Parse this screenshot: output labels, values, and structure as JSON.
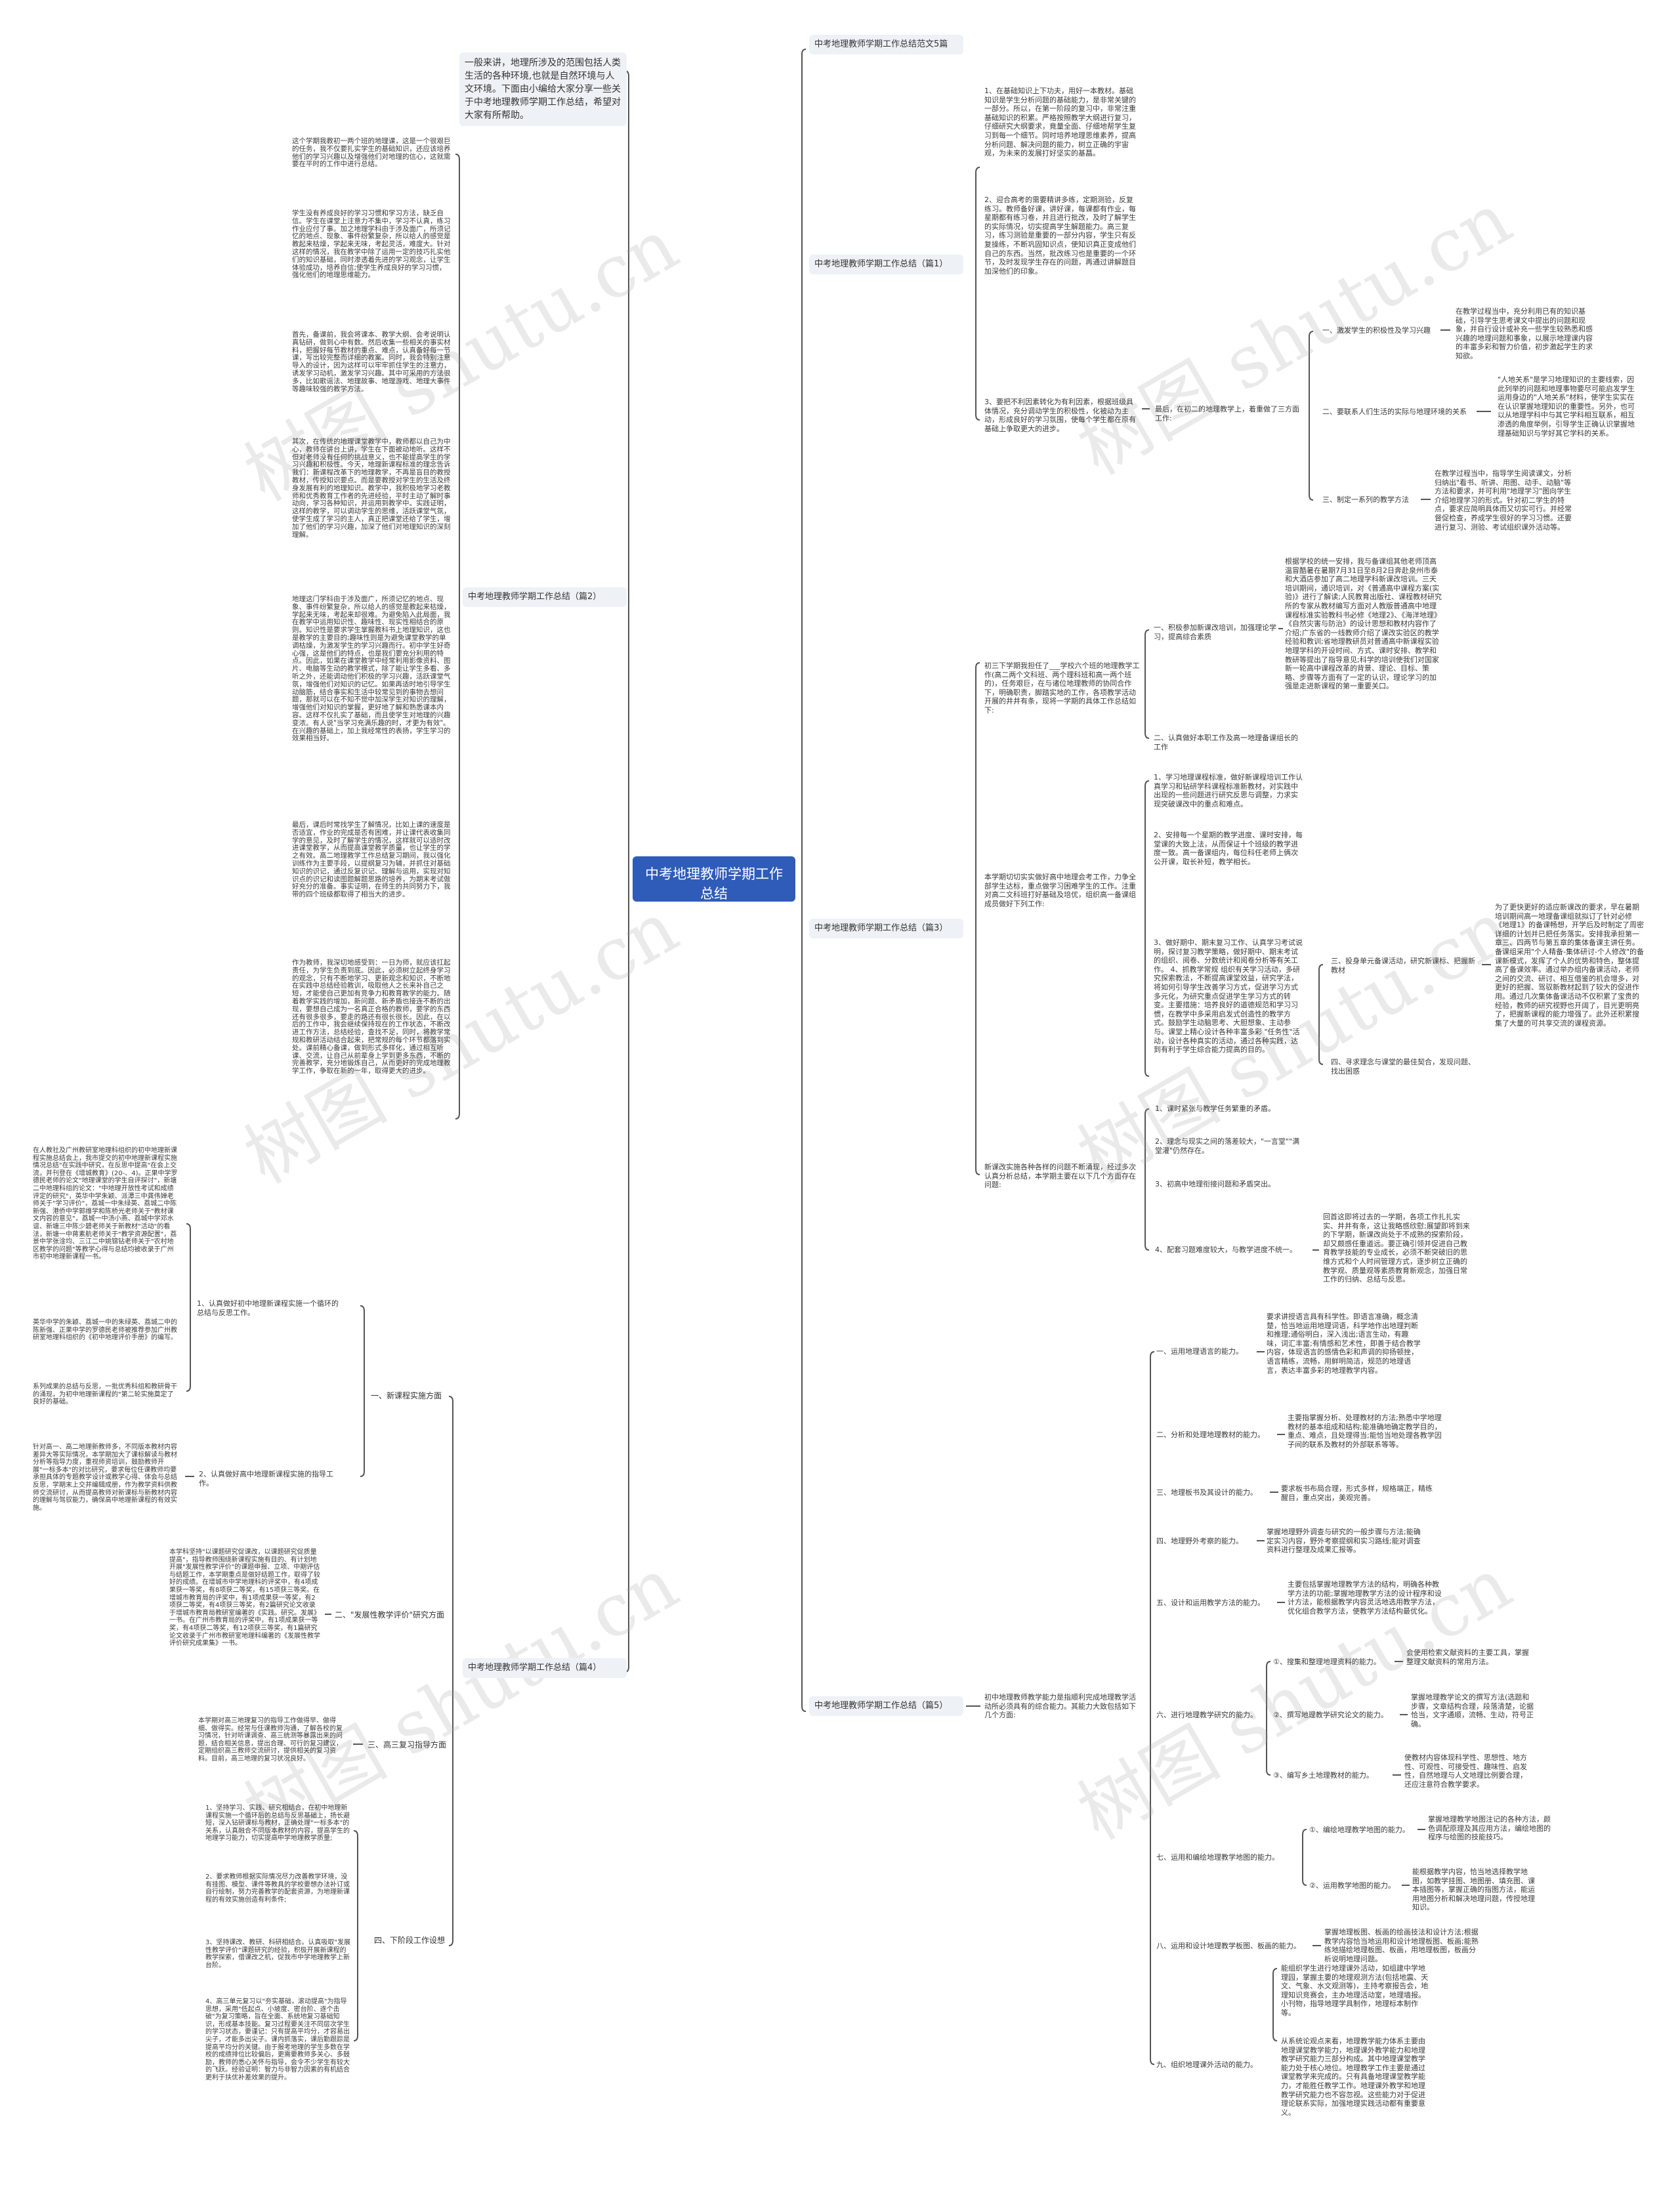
{
  "root": {
    "title": "中考地理教师学期工作总结"
  },
  "watermark": "树图 shutu.cn",
  "intro": "一般来讲，地理所涉及的范围包括人类生活的各种环境,也就是自然环境与人文环境。下面由小编给大家分享一些关于中考地理教师学期工作总结，希望对大家有所帮助。",
  "right_title": "中考地理教师学期工作总结范文5篇",
  "p1": {
    "label": "中考地理教师学期工作总结（篇1）",
    "items": [
      "1、在基础知识上下功夫，用好一本教材。基础知识是学生分析问题的基础能力，是非常关键的一部分。所以，在第一阶段的复习中，非常注重基础知识的积累。严格按照教学大纲进行复习，仔细研究大纲要求，竟量全面、仔细地帮学生复习到每一个细节。同时培养地理思维素养，提高分析问题、解决问题的能力，树立正确的宇宙观，为未来的发展打好坚实的基蕌。",
      "2、迎合高考的需要精讲多练，定期测验，反复练习。教师备好课，讲好课，每课都有作业，每星期都有练习卷，并且进行批改，及时了解学生的实际情况，切实提高学生解题能力。高三复习，练习测验是重要的一部分内容，学生只有反复操练，不断巩固知识点，使知识真正变成他们自己的东西。当然，批改练习也是重要的一个环节，及时发现学生存在的问题，再通过讲解题目加深他们的印象。",
      "3、要把不利因素转化为有利因素，根据班级具体情况，充分调动学生的积极性，化被动为主动，形成良好的学习氛围，使每个学生都在原有基础上争取更大的进步。"
    ],
    "last": "最后，在初二的地理教学上，着重做了三方面工作:",
    "aspects": [
      {
        "title": "一、激发学生的积极性及学习兴趣",
        "text": "在教学过程当中，充分利用已有的知识基础，引导学生思考课文中提出的问题和现象，并自行设计或补充一些学生较熟悉和感兴趣的地理问题和事象，以展示地理课内容的丰富多彩和智力价值，初步激起学生的求知欲。"
      },
      {
        "title": "二、要联系人们生活的实际与地理环境的关系",
        "text": "\"人地关系\"是学习地理知识的主要线索，因此列举的问题和地理事物要尽可能启发学生运用身边的\"人地关系\"材料，使学生实实在在认识掌握地理知识的重要性。另外，也可以从地理学科中与其它学科相互联系，相互渗透的角度举例，引导学生正确认识掌握地理基础知识与学好其它学科的关系。"
      },
      {
        "title": "三、制定一系列的教学方法",
        "text": "在教学过程当中，指导学生阅读课文，分析归纳出\"看书、听讲、用图、动手、动脑\"等方法和要求，并可利用\"地理学习\"图向学生介绍地理学习的形式。针对初二学生的特点，要求应简明具体而又切实可行。并经常督促检查，养成学生很好的学习习惯。还要进行复习、测验、考试组织课外活动等。"
      }
    ]
  },
  "p2": {
    "label": "中考地理教师学期工作总结（篇2）",
    "items": [
      "这个学期我教初一两个班的地理课，这是一个很艰巨的任务，我不仅要扎实学生的基础知识，还应该培养他们的学习兴趣以及增强他们对地理的信心，这就需要在平时的工作中进行总结。",
      "学生没有养成良好的学习习惯和学习方法，缺乏自信。学生在课堂上注意力不集中，学习不认真，练习作业应付了事。加之地理学科由于涉及面广，所须记忆的地点、现象、事件纷繁复杂，所以给人的感觉是教起来枯燥，学起来无味，考起灵活，难度大。针对这样的情况，我在教学中除了运用一定的技巧扎实他们的知识基础，同时渗透着先进的学习观念，让学生体验成功，培养自信;使学生养成良好的学习习惯，强化他们的地理思维能力。",
      "首先，备课前，我会将课本、教学大纲、会考说明认真钻研，做到心中有数。然后收集一些相关的事实材料，把握好每节教材的重点、难点，认真备好每一节课，写出较完整而详细的教案。同时，我会特别注意导入的设计，因为这样可以牢牢抓住学生的注意力，诱发学习动机，激发学习兴趣。其中可采用的方法很多，比如歌谣法、地理故事、地理游戏、地理大事件等趣味较强的教学方法。",
      "其次，在传统的地理课堂教学中，教师都以自己为中心，教师在讲台上讲，学生在下面被动地听。这样不但对老师没有任何的挑战意义，也不能提高学生的学习兴趣和积极性。今天，地理新课程标准的理念告诉我们：新课程改革下的地理教学，不再是盲目的教授教材，传授知识要点。而是要教授对学生的生活及终身发展有利的地理知识。教学中，我积极地学习老教师和优秀教育工作者的先进经验，平时主动了解时事动向，学习各种知识，并运用到教学中。实践证明，这样的教学，可以调动学生的思维，活跃课堂气氛，使学生成了学习的主人，真正把课堂还给了学生，增加了他们的学习兴趣，加深了他们对地理知识的深刻理解。",
      "地理这门学科由于涉及面广，所须记忆的地点、现象、事件纷繁复杂，所以给人的感觉是教起来枯燥，学起来无味，考起来却很难。为避免陷入此局面，我在教学中运用知识性、趣味性、现实性相结合的原则。知识性是要求学生掌握教科书上地理知识，这也是教学的主要目的;趣味性则是为避免课堂教学的单调枯燥，为激发学生的学习兴趣而行。初中学生好奇心强，这是他们的特点，也是我们要充分利用的特点。因此，如果在课堂教学中经常利用影像资料、图片、电脑等生动的教学模式，除了能让学生多看、多听之外，还能调动他们积极的学习兴趣，活跃课堂气氛，增强他们对知识的记忆。如果再适时地引导学生动脑筋，结合事实和生活中较常见到的事物去想问题，那就可以在不知不觉中加深学生对知识的理解，增强他们对知识的掌握，更好地了解和熟悉课本内容。这样不仅扎实了基础，而且使学生对地理的兴趣变浓。有人说\"当学习充满乐趣的时，才更为有效\"。在兴趣的基础上，加上我经常性的表扬，学生学习的效果相当好。",
      "最后，课后时常找学生了解情况，比如上课的速度是否适宜，作业的完成是否有困难，并让课代表收集同学的意见，及时了解学生的情况，这样就可以适时改进课堂教学，从而提高课堂教学质量，也让学生的学之有效。高二地理教学工作总结复习期间，我以强化训练作为主要手段，以提纲复习为辅，并抓住对基础知识的识记，通过反复识记、理解与运用，实现对知识点的识记和读图题解题思路的培养，为期末考试做好充分的准备。事实证明，在师生的共同努力下，我带的四个班级都取得了相当大的进步。",
      "作为教师，我深切地感受到：一日为师，就应该扛起责任，为学生负责到底。因此，必须树立起终身学习的观念，只有不断地学习、更新观念和知识，不断地在实践中总结经验教训，吸取他人之长来补自己之短，才能使自己更加有竞争力和教育教学的能力。随着教学实践的增加，新问题、新矛盾也接连不断的出现，要想自己成为一名真正合格的教师，要学的东西还有很多很多，要走的路还有很长很长。因此，在以后的工作中，我会继续保持现在的工作状态，不断改进工作方法，总结经验，查找不足，同时，将教学常规和教研活动结合起来，把常规的每个环节都落到实处。课前精心备课，做到形式多样化，通过相互听课、交流，让自己从前辈身上学到更多东西，不断的完善教学，充分地锻炼自己，从而更好的完成地理教学工作，争取在新的一年，取得更大的进步。"
    ]
  },
  "p3": {
    "label": "中考地理教师学期工作总结（篇3）",
    "intro1": "初三下学期我担任了___学校六个班的地理教学工作(高二两个文科班、两个理科班和高一两个班的)，任务艰巨，在与诸位地理教师的协同合作下，明确职责，脚踏实地的工作，各项教学活动开展的井井有条，现将一学期的具体工作总结如下:",
    "s1": "一、积极参加新课改培训，加强理论学习，提高综合素质",
    "s1_text": "根据学校的统一安排，我与备课组其他老师顶高温冒酷暑在暑期7月31日至8月2日奔赴泉州市泰和大酒店参加了高二地理学科新课改培训。三天培训期间，通识培训，对《普通高中课程方案(实验)》进行了解读;人民教育出版社、课程教材研究所的专家从教材编写方面对人教版普通高中地理课程标准实验教科书必修《地理2》、《海洋地理》《自然灾害与防治》的设计思想和教材内容作了介绍;广东省的一线教师介绍了课改实验区的教学经验和教训;省地理教研员对普通高中新课程实验地理学科的开设时间、方式、课时安排、教学和教研等提出了指导意见;科学的培训使我们对国家新一轮高中课程改革的背景、理论、目标、策略、步骤等方面有了一定的认识，理论学习的加强是走进新课程的第一重要关口。",
    "s2": "二、认真做好本职工作及高一地理备课组长的工作",
    "intro2": "本学期切切实实做好高中地理会考工作，力争全部学生达标，重点做学习困难学生的工作。注重对高二文科班打好基础及培优，组织高一备课组成员做好下列工作:",
    "work": [
      "1、学习地理课程标准，做好新课程培训工作认真学习和钻研学科课程标准新教材，对实践中出现的一些问题进行研究反思与调整，力求实现突破课改中的重点和难点。",
      "2、安排每一个星期的教学进度、课时安排，每堂课的大致上法，从而保证十个班级的教学进度一致。高一备课组内，每位科任老师上俩次公开课，取长补短，教学相长。",
      "3、做好期中、期末复习工作、认真学习考试说明，探讨复习教学策略，做好期中、期末考试的组织、阅卷、分数统计和阅卷分析等有关工作。 4、抓教学常规 组织有关学习活动，多研究探索教法，不断提高课堂效益，研究学法，将如何引导学生改善学习方式，促进学习方式多元化，为研究重点促进学生学习方式的转变。主要措施：培养良好的道德规范和学习习惯，在教学中多采用启发式创造性的教学方式。鼓励学生动脑思考、大胆想象、主动参与。课堂上精心设计各种丰富多彩 \"任务性\"活动，设计各种真实的活动，通过各种实践，达到有利于学生综合能力提高的目的。"
    ],
    "s3": "三、投身单元备课活动，研究新课标、把握新教材",
    "s3_text": "为了更快更好的适应新课改的要求，早在暑期培训期间高一地理备课组就拟订了针对必修《地理1》的备课畅想，开学后及时制定了周密详细的计划并已把任务落实。安排我承担第一章三、四两节与第五章的集体备课主讲任务。备课组采用\"个人精备-集体研讨-个人修改\"的备课新模式，发挥了个人的优势和特色，整体提高了备课效率。通过举办组内备课活动，老师之间的交流、研讨、相互借鉴的机会增多，对更好的把握、驾驭新教材起到了较大的促进作用。通过几次集体备课活动不仅积累了宝贵的经验，教师的研究视野也开阔了，目光更明亮了，把握新课程的能力增强了。此外还积累搜集了大量的可共享交流的课程资源。",
    "s4": "四、寻求理念与课堂的最佳契合，发现问题、找出困惑",
    "intro3": "新课改实施各种各样的问题不断涌现，经过多次认真分析总结，本学期主要在以下几个方面存在问题:",
    "problems": [
      "1、课时紧张与教学任务繁重的矛盾。",
      "2、理念与现实之间的落差较大，\"一言堂\"\"满堂灌\"仍然存在。",
      "3、初高中地理衔接问题和矛盾突出。",
      "4、配套习题难度较大，与教学进度不统一。"
    ],
    "closing": "回首这即将过去的一学期，各项工作扎扎实实、井井有条，这让我略感欣慰;展望即将到来的下学期，新课改尚处于不成熟的探索阶段，却又颇感任重道远。要正确引领并促进自己教育教学技能的专业成长，必须不断突破旧的思维方式和个人时间管理方式，逐步树立正确的教学观、质量观等素质教育新观念，加强日常工作的归纳、总结与反思。"
  },
  "p4": {
    "label": "中考地理教师学期工作总结（篇4）",
    "a1": "一、新课程实施方面",
    "a1_1": "1、认真做好初中地理新课程实施一个循环的总结与反思工作。",
    "a1_1_texts": [
      "在人教社及广州教研室地理科组织的初中地理新课程实施总结会上，我市提交的初中地理新课程实施情况总结\"在实践中研究，在反思中提高\"在会上交流，并刊登在《增城教育》(20-、4)。正果中学罗德民老师的论文\"地理课堂的学生自评探讨\"，新塘二中地理科组的论文：\"中地理开放性考试和成绩评定的研究\"，英华中学朱颖、派潭三中龚伟婵老师关于\"学习评价\"，荔城一中朱绿英、荔城二中陈新强、港侨中学郭维学和陈桥光老师关于\"教材课文内容的意见\"，荔城一中汤小燕、荔城中学邓水谊、新塘三中陈少碧老师关于新教材\"活动\"的看法，新塘一中蒋素航老师关于\"教学资源配置\"，荔景中学张淦均、三江二中姚锦钻老师关于\"农村地区教学的问题\"等教学心得与总结均被收录于广州市初中地理新课程一书。",
      "英华中学的朱颖、荔城一中的朱绿英、荔城二中的陈新强、正果中学的罗德民老师被推荐参加广州教研室地理科组织的《初中地理评价手册》的编写。",
      "系列成果的总结与反思，一批优秀科组和教研骨干的涌现，为初中地理新课程的\"第二轮实施奠定了良好的基础。"
    ],
    "a1_2": "2、认真做好高中地理新课程实施的指导工作。",
    "a1_2_text": "针对高一、高二地理新教师多，不同版本教材内容差异大等实际情况，本学期加大了课标解读与教材分析等指导力度，重视师资培训，鼓励教师开展\"一标多本\"的对比研究，要求每位任课教师均要承担具体的专题教学设计或教学心得、体会与总结反思，学期末上交并编辑成册，作为教学资料供教师交流研讨，从而提高教师对新课标与新教材内容的理解与驾驭能力，确保高中地理新课程的有效实施。",
    "a2": "二、\"发展性教学评价\"研究方面",
    "a2_text": "本学科坚持\"以课题研究促课改，以课题研究促质量提高\"，指导教师围绕新课程实施有目的、有计划地开展\"发展性教学评价\"的课题申报、立项、中期评估与结题工作，本学期重点是做好结题工作，取得了较好的成绩。在增城市中学地理科的评奖中，有4项成果获一等奖，有8项获二等奖，有15项获三等奖。在增城市教育局的评奖中，有1项成果获一等奖，有2项获二等奖，有4项获三等奖，有2篇研究论文收录于增城市教育局教研室编著的《实践。研究。发展》一书。在广州市教育局的评奖中，有1项成果获一等奖，有4项获二等奖，有12项获三等奖，有1篇研究论文收录于广州市教研室地理科编著的《发展性教学评价研究成果集》一书。",
    "a3": "三、高三复习指导方面",
    "a3_text": "本学期对高三地理复习的指导工作做得早、做得细、做得实。经常与任课教师沟通，了解各校的复习情况，针对听课调查、高三统测等暴露出来的问题，结合相关信息，提出合理、可行的复习建议，定期组织高三教师交流研讨，提供相关的复习资料。目前，高三地理的复习状况良好。",
    "a4": "四、下阶段工作设想",
    "a4_texts": [
      "1、坚持学习、实践、研究相结合，在初中地理新课程实施一个循环后的总结与反思基础上，扬长避短，深入钻研课标与教材，正确处理\"一标多本\"的关系，认真融合不同版本教材的内容，提高学生的地理学习能力，切实提高中学地理教学质量;",
      "2、要求教师根据实际情况尽力改善教学环境，没有挂图、模型、课件等教具的学校要想办法补订或自行绘制，努力完善教学的配套资源，为地理新课程的有效实施创造有利条件;",
      "3、坚持课改、教研、科研相结合。认真吸取\"发展性教学评价\"课题研究的经验，积极开展新课程的教学探索，借课改之机，促我市中学地理教学上新台阶。",
      "4、高三单元复习以\"夯实基础，滚动提高\"为指导思想，采用\"低起点、小坡度、密台阶、逐个击破\"为复习策略，旨在全面、系统地复习基础知识，形成基本技能。复习过程要关注不同层次学生的学习状态，要谨记：只有提高平均分，才容易出尖子，才能多出尖子。课内抓落实，课后勤跟踪是提高平均分的关键。由于报考地理的学生多数在学校的成绩排位比较偏后，更需要教师多关心、多鼓励，教师的悉心关怀与指导，会令不少学生有较大的飞跃。经验证明：智力与非智力因素的有机结合更利于扶优补差效果的提升。"
    ]
  },
  "p5": {
    "label": "中考地理教师学期工作总结（篇5）",
    "intro": "初中地理教师教学能力是指顺利完成地理教学活动所必须具有的综合能力。其能力大致包括如下几个方面:",
    "abilities": [
      {
        "title": "一、运用地理语言的能力。",
        "text": "要求讲授语言具有科学性。即语言准确，概念清楚，恰当地运用地理词语，科学地作出地理判断和推理;通俗明白，深入浅出;语言生动，有趣味，词汇丰富;有情感和艺术性，即善于结合教学内容，体现语言的感情色彩和声调的抑扬顿挫，语言精练，流畅，用鲜明简洁，规范的地理语言，表达丰富多彩的地理教学内容。"
      },
      {
        "title": "二、分析和处理地理教材的能力。",
        "text": "主要指掌握分析、处理教材的方法;熟悉中学地理教材的基本组成和结构;能准确地确定教学目的，重点、难点，且处理得当;能恰当地处理各教学因子间的联系及教材的外部联系等等。"
      },
      {
        "title": "三、地理板书及其设计的能力。",
        "text": "要求板书布局合理，形式多样，规格端正，精练醒目，重点突出，美观完善。"
      },
      {
        "title": "四、地理野外考察的能力。",
        "text": "掌握地理野外调查与研究的一般步骤与方法;能确定实习内容，野外考察提纲和实习路线;能对调查资料进行整理及成果汇报等。"
      },
      {
        "title": "五、设计和运用教学方法的能力。",
        "text": "主要包括掌握地理教学方法的结构，明确各种教学方法的功能;掌握地理教学方法的设计程序和设计方法，能根据教学内容灵活地选用教学方法，优化组合教学方法，使教学方法结构最优化。"
      }
    ],
    "research": {
      "title": "六、进行地理教学研究的能力。",
      "subs": [
        {
          "title": "①、搜集和整理地理资料的能力。",
          "text": "会使用检索文献资料的主要工具，掌握整理文献资料的常用方法。"
        },
        {
          "title": "②、撰写地理教学研究论文的能力。",
          "text": "掌握地理教学论文的撰写方法(选题和步骤，文章结构合理，段落清楚，论据恰当，文字通顺，流畅、生动，符号正确。"
        },
        {
          "title": "③、编写乡土地理教材的能力。",
          "text": "使教材内容体现科学性、思想性、地方性、可观性、可接受性、趣味性、启发性，自然地理与人文地理比例要合理，还应注意符合教学要求。"
        }
      ]
    },
    "maps": {
      "title": "七、运用和编绘地理教学地图的能力。",
      "subs": [
        {
          "title": "①、编绘地理教学地图的能力。",
          "text": "掌握地理教学地图注记的各种方法，颜色调配原理及其应用方法，编绘地图的程序与绘图的技能技巧。"
        },
        {
          "title": "②、运用教学地图的能力。",
          "text": "能根据教学内容，恰当地选择教学地图，如教学挂图、地图册、填充图、课本插图等，掌握正确的指图方法，能运用地图分析和解决地理问题，传授地理知识。"
        }
      ]
    },
    "board": {
      "title": "八、运用和设计地理教学板图、板画的能力。",
      "text": "掌握地理板图、板画的绘画技法和设计方法;根据教学内容恰当地运用和设计地理板图、板画;能熟练地描绘地理板图、板画，用地理板图，板画分析说明地理问题。"
    },
    "activity": {
      "title": "九、组织地理课外活动的能力。",
      "texts": [
        "能组织学生进行地理课外活动，如组建中学地理园，掌握主要的地理观测方法(包括地震、天文、气象、水文观测等)，主持考察报告会，地理知识竞赛会，主办地理活动室，地理墙报。小刊物，指导地理学具制作，地理标本制作等。",
        "从系统论观点来看，地理教学能力体系主要由地理课堂教学能力，地理课外教学能力和地理教学研究能力三部分构成。其中地理课堂教学能力处于核心地位。地理教学工作主要是通过课堂教学来完成的。只有具备地理课堂教学能力，才能胜任教学工作。地理课外教学和地理教学研究能力也不容忽视。这些能力对于促进理论联系实际，加强地理实践活动都有重要意义。"
      ]
    }
  }
}
